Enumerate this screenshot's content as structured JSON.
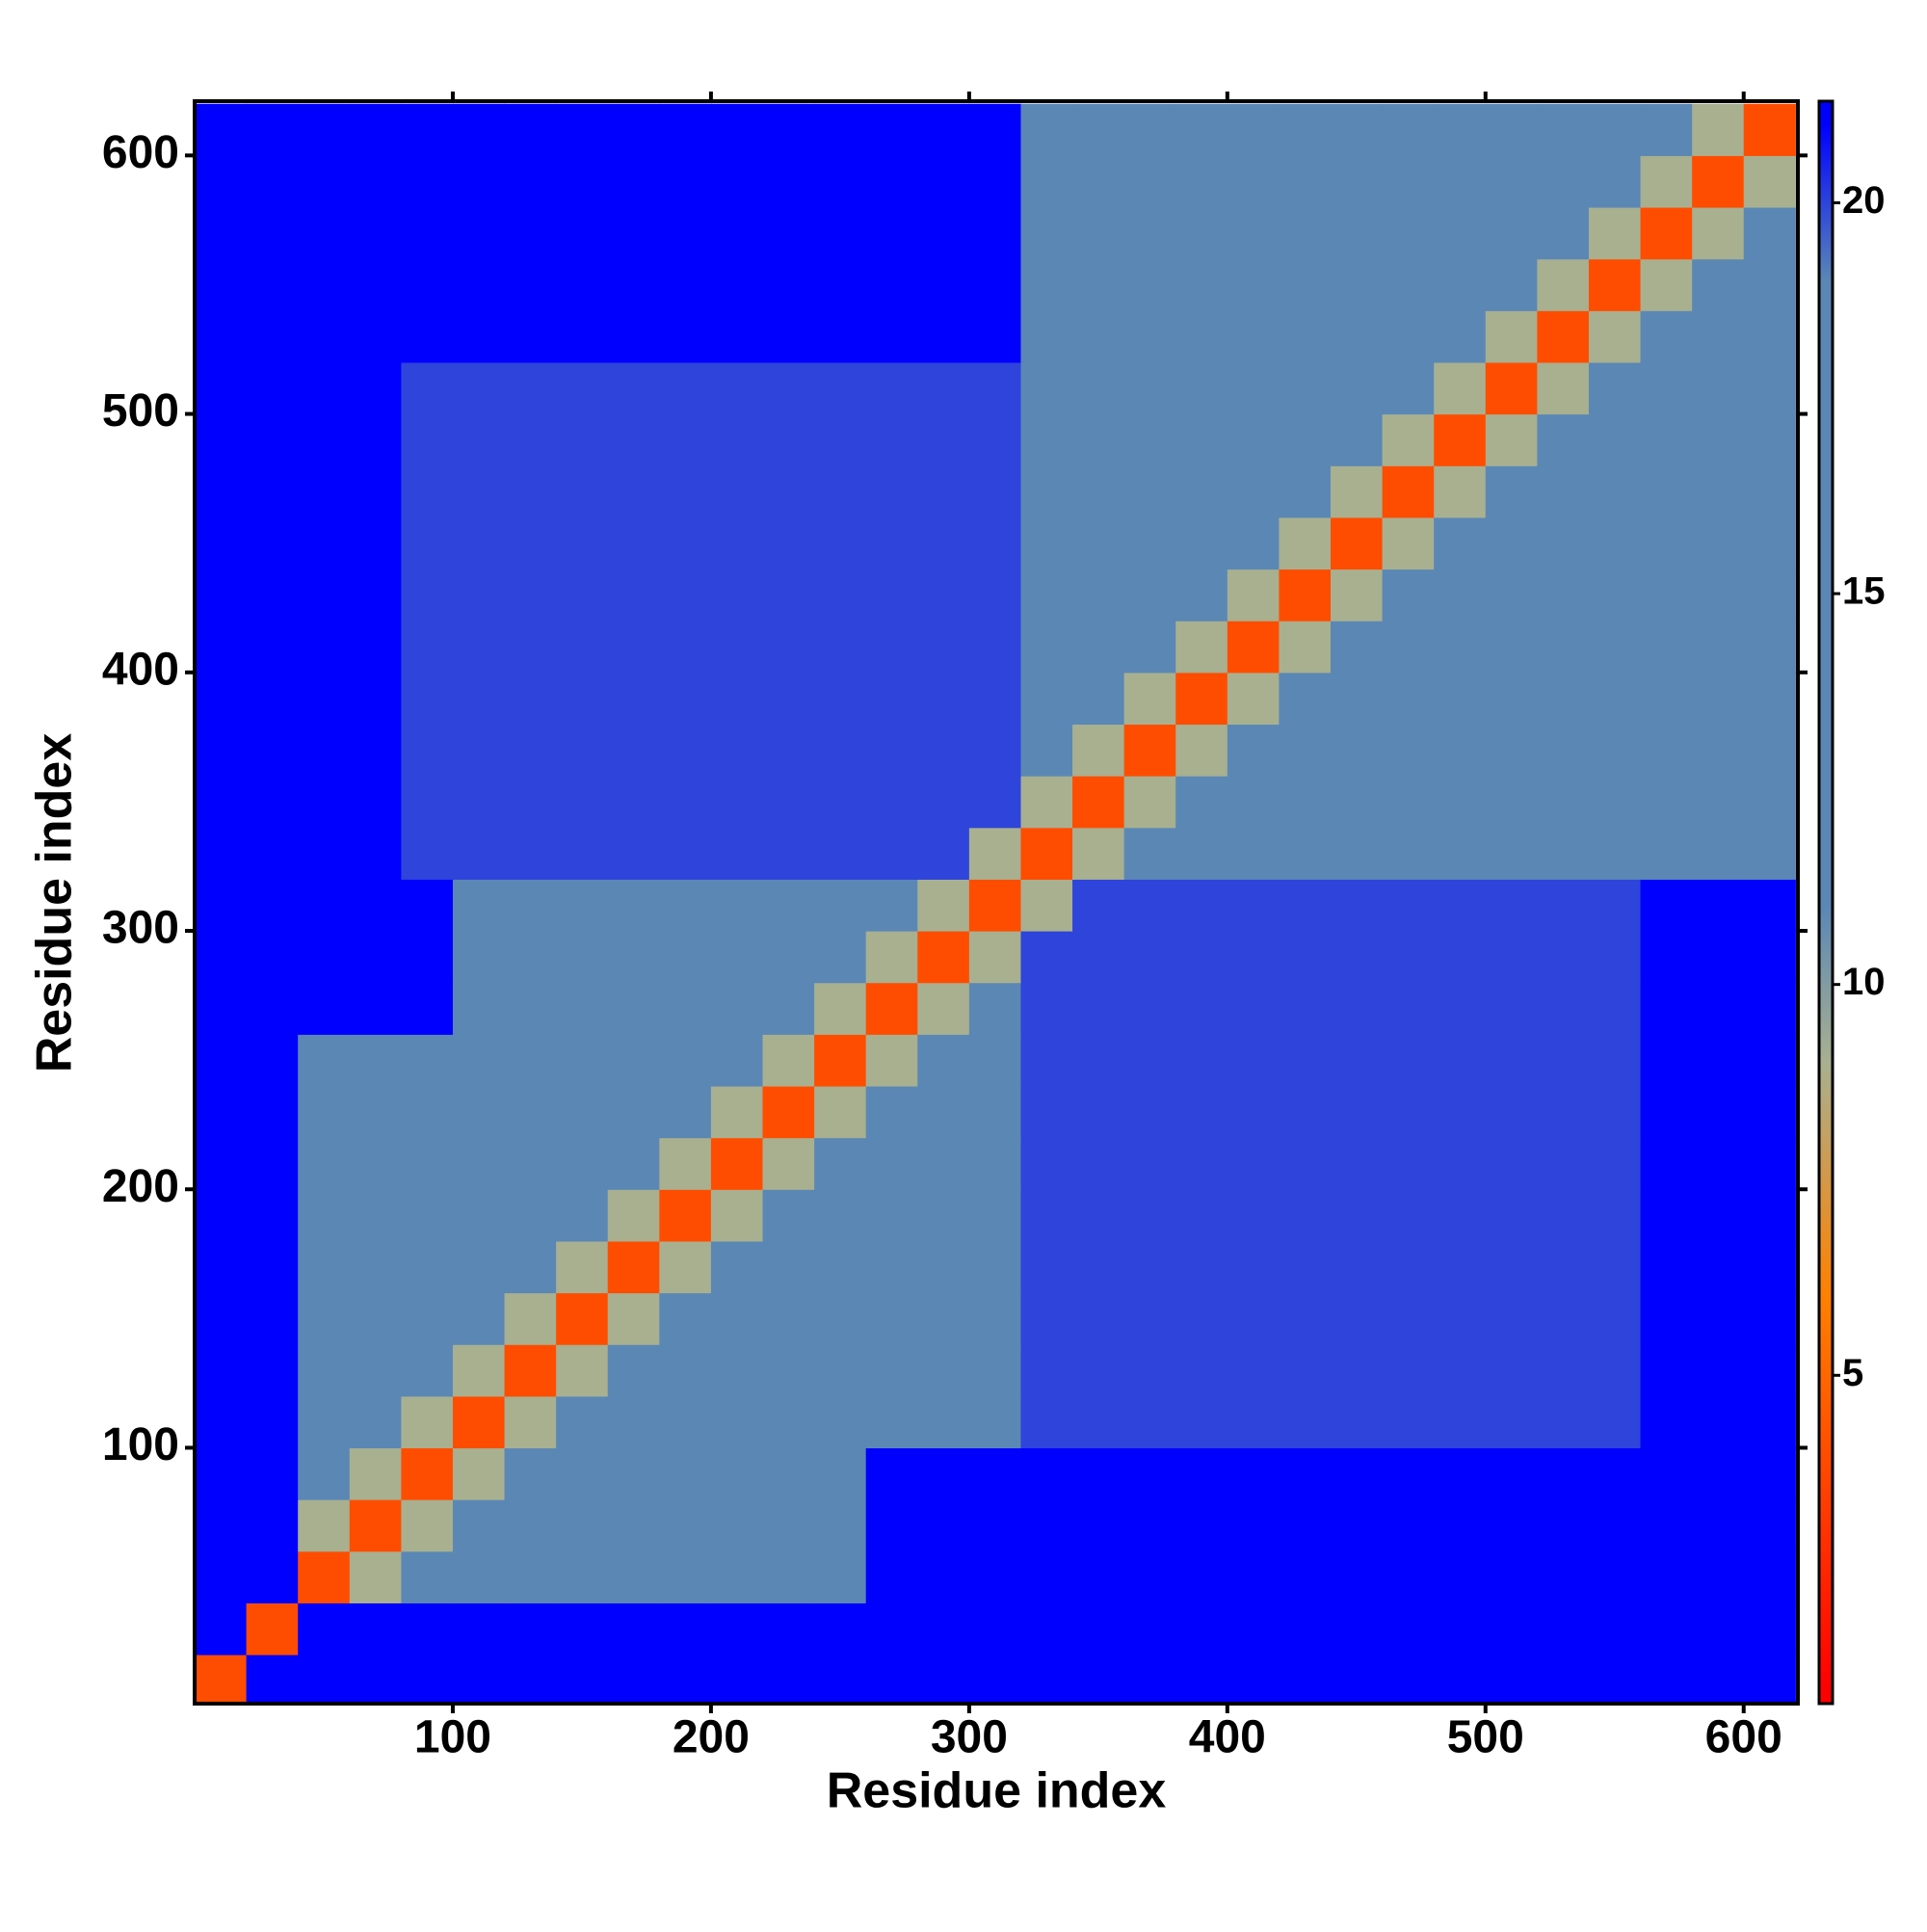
{
  "chart_data": {
    "type": "heatmap",
    "xlabel": "Residue index",
    "ylabel": "Residue index",
    "x": [
      10,
      30,
      50,
      70,
      90,
      110,
      130,
      150,
      170,
      190,
      210,
      230,
      250,
      270,
      290,
      310,
      330,
      350,
      370,
      390,
      410,
      430,
      450,
      470,
      490,
      510,
      530,
      550,
      570,
      590,
      610
    ],
    "y": [
      10,
      30,
      50,
      70,
      90,
      110,
      130,
      150,
      170,
      190,
      210,
      230,
      250,
      270,
      290,
      310,
      330,
      350,
      370,
      390,
      410,
      430,
      450,
      470,
      490,
      510,
      530,
      550,
      570,
      590,
      610
    ],
    "z": [
      [
        4,
        21,
        21,
        21,
        21,
        21,
        21,
        21,
        21,
        21,
        21,
        21,
        21,
        21,
        21,
        21,
        21,
        21,
        21,
        21,
        21,
        21,
        21,
        21,
        21,
        21,
        21,
        21,
        21,
        21,
        21
      ],
      [
        21,
        4,
        21,
        21,
        21,
        21,
        21,
        21,
        21,
        21,
        21,
        21,
        21,
        21,
        21,
        21,
        21,
        21,
        21,
        21,
        21,
        21,
        21,
        21,
        21,
        21,
        21,
        21,
        21,
        21,
        21
      ],
      [
        21,
        21,
        4,
        9,
        17,
        17,
        17,
        17,
        17,
        17,
        17,
        17,
        17,
        21,
        21,
        21,
        21,
        21,
        21,
        21,
        21,
        21,
        21,
        21,
        21,
        21,
        21,
        21,
        21,
        21,
        21
      ],
      [
        21,
        21,
        9,
        4,
        9,
        17,
        17,
        17,
        17,
        17,
        17,
        17,
        17,
        21,
        21,
        21,
        21,
        21,
        21,
        21,
        21,
        21,
        21,
        21,
        21,
        21,
        21,
        21,
        21,
        21,
        21
      ],
      [
        21,
        21,
        17,
        9,
        4,
        9,
        17,
        17,
        17,
        17,
        17,
        17,
        17,
        21,
        21,
        21,
        21,
        21,
        21,
        21,
        21,
        21,
        21,
        21,
        21,
        21,
        21,
        21,
        21,
        21,
        21
      ],
      [
        21,
        21,
        17,
        17,
        9,
        4,
        9,
        17,
        17,
        17,
        17,
        17,
        17,
        17,
        17,
        17,
        20,
        20,
        20,
        20,
        20,
        20,
        20,
        20,
        20,
        20,
        20,
        20,
        21,
        21,
        21
      ],
      [
        21,
        21,
        17,
        17,
        17,
        9,
        4,
        9,
        17,
        17,
        17,
        17,
        17,
        17,
        17,
        17,
        20,
        20,
        20,
        20,
        20,
        20,
        20,
        20,
        20,
        20,
        20,
        20,
        21,
        21,
        21
      ],
      [
        21,
        21,
        17,
        17,
        17,
        17,
        9,
        4,
        9,
        17,
        17,
        17,
        17,
        17,
        17,
        17,
        20,
        20,
        20,
        20,
        20,
        20,
        20,
        20,
        20,
        20,
        20,
        20,
        21,
        21,
        21
      ],
      [
        21,
        21,
        17,
        17,
        17,
        17,
        17,
        9,
        4,
        9,
        17,
        17,
        17,
        17,
        17,
        17,
        20,
        20,
        20,
        20,
        20,
        20,
        20,
        20,
        20,
        20,
        20,
        20,
        21,
        21,
        21
      ],
      [
        21,
        21,
        17,
        17,
        17,
        17,
        17,
        17,
        9,
        4,
        9,
        17,
        17,
        17,
        17,
        17,
        20,
        20,
        20,
        20,
        20,
        20,
        20,
        20,
        20,
        20,
        20,
        20,
        21,
        21,
        21
      ],
      [
        21,
        21,
        17,
        17,
        17,
        17,
        17,
        17,
        17,
        9,
        4,
        9,
        17,
        17,
        17,
        17,
        20,
        20,
        20,
        20,
        20,
        20,
        20,
        20,
        20,
        20,
        20,
        20,
        21,
        21,
        21
      ],
      [
        21,
        21,
        17,
        17,
        17,
        17,
        17,
        17,
        17,
        17,
        9,
        4,
        9,
        17,
        17,
        17,
        20,
        20,
        20,
        20,
        20,
        20,
        20,
        20,
        20,
        20,
        20,
        20,
        21,
        21,
        21
      ],
      [
        21,
        21,
        17,
        17,
        17,
        17,
        17,
        17,
        17,
        17,
        17,
        9,
        4,
        9,
        17,
        17,
        20,
        20,
        20,
        20,
        20,
        20,
        20,
        20,
        20,
        20,
        20,
        20,
        21,
        21,
        21
      ],
      [
        21,
        21,
        21,
        21,
        21,
        17,
        17,
        17,
        17,
        17,
        17,
        17,
        9,
        4,
        9,
        17,
        20,
        20,
        20,
        20,
        20,
        20,
        20,
        20,
        20,
        20,
        20,
        20,
        21,
        21,
        21
      ],
      [
        21,
        21,
        21,
        21,
        21,
        17,
        17,
        17,
        17,
        17,
        17,
        17,
        17,
        9,
        4,
        9,
        20,
        20,
        20,
        20,
        20,
        20,
        20,
        20,
        20,
        20,
        20,
        20,
        21,
        21,
        21
      ],
      [
        21,
        21,
        21,
        21,
        21,
        17,
        17,
        17,
        17,
        17,
        17,
        17,
        17,
        17,
        9,
        4,
        9,
        20,
        20,
        20,
        20,
        20,
        20,
        20,
        20,
        20,
        20,
        20,
        21,
        21,
        21
      ],
      [
        21,
        21,
        21,
        21,
        20,
        20,
        20,
        20,
        20,
        20,
        20,
        20,
        20,
        20,
        20,
        9,
        4,
        9,
        17,
        17,
        17,
        17,
        17,
        17,
        17,
        17,
        17,
        17,
        17,
        17,
        17
      ],
      [
        21,
        21,
        21,
        21,
        20,
        20,
        20,
        20,
        20,
        20,
        20,
        20,
        20,
        20,
        20,
        20,
        9,
        4,
        9,
        17,
        17,
        17,
        17,
        17,
        17,
        17,
        17,
        17,
        17,
        17,
        17
      ],
      [
        21,
        21,
        21,
        21,
        20,
        20,
        20,
        20,
        20,
        20,
        20,
        20,
        20,
        20,
        20,
        20,
        17,
        9,
        4,
        9,
        17,
        17,
        17,
        17,
        17,
        17,
        17,
        17,
        17,
        17,
        17
      ],
      [
        21,
        21,
        21,
        21,
        20,
        20,
        20,
        20,
        20,
        20,
        20,
        20,
        20,
        20,
        20,
        20,
        17,
        17,
        9,
        4,
        9,
        17,
        17,
        17,
        17,
        17,
        17,
        17,
        17,
        17,
        17
      ],
      [
        21,
        21,
        21,
        21,
        20,
        20,
        20,
        20,
        20,
        20,
        20,
        20,
        20,
        20,
        20,
        20,
        17,
        17,
        17,
        9,
        4,
        9,
        17,
        17,
        17,
        17,
        17,
        17,
        17,
        17,
        17
      ],
      [
        21,
        21,
        21,
        21,
        20,
        20,
        20,
        20,
        20,
        20,
        20,
        20,
        20,
        20,
        20,
        20,
        17,
        17,
        17,
        17,
        9,
        4,
        9,
        17,
        17,
        17,
        17,
        17,
        17,
        17,
        17
      ],
      [
        21,
        21,
        21,
        21,
        20,
        20,
        20,
        20,
        20,
        20,
        20,
        20,
        20,
        20,
        20,
        20,
        17,
        17,
        17,
        17,
        17,
        9,
        4,
        9,
        17,
        17,
        17,
        17,
        17,
        17,
        17
      ],
      [
        21,
        21,
        21,
        21,
        20,
        20,
        20,
        20,
        20,
        20,
        20,
        20,
        20,
        20,
        20,
        20,
        17,
        17,
        17,
        17,
        17,
        17,
        9,
        4,
        9,
        17,
        17,
        17,
        17,
        17,
        17
      ],
      [
        21,
        21,
        21,
        21,
        20,
        20,
        20,
        20,
        20,
        20,
        20,
        20,
        20,
        20,
        20,
        20,
        17,
        17,
        17,
        17,
        17,
        17,
        17,
        9,
        4,
        9,
        17,
        17,
        17,
        17,
        17
      ],
      [
        21,
        21,
        21,
        21,
        20,
        20,
        20,
        20,
        20,
        20,
        20,
        20,
        20,
        20,
        20,
        20,
        17,
        17,
        17,
        17,
        17,
        17,
        17,
        17,
        9,
        4,
        9,
        17,
        17,
        17,
        17
      ],
      [
        21,
        21,
        21,
        21,
        21,
        21,
        21,
        21,
        21,
        21,
        21,
        21,
        21,
        21,
        21,
        21,
        17,
        17,
        17,
        17,
        17,
        17,
        17,
        17,
        17,
        9,
        4,
        9,
        17,
        17,
        17
      ],
      [
        21,
        21,
        21,
        21,
        21,
        21,
        21,
        21,
        21,
        21,
        21,
        21,
        21,
        21,
        21,
        21,
        17,
        17,
        17,
        17,
        17,
        17,
        17,
        17,
        17,
        17,
        9,
        4,
        9,
        17,
        17
      ],
      [
        21,
        21,
        21,
        21,
        21,
        21,
        21,
        21,
        21,
        21,
        21,
        21,
        21,
        21,
        21,
        21,
        17,
        17,
        17,
        17,
        17,
        17,
        17,
        17,
        17,
        17,
        17,
        9,
        4,
        9,
        17
      ],
      [
        21,
        21,
        21,
        21,
        21,
        21,
        21,
        21,
        21,
        21,
        21,
        21,
        21,
        21,
        21,
        21,
        17,
        17,
        17,
        17,
        17,
        17,
        17,
        17,
        17,
        17,
        17,
        17,
        9,
        4,
        9
      ],
      [
        21,
        21,
        21,
        21,
        21,
        21,
        21,
        21,
        21,
        21,
        21,
        21,
        21,
        21,
        21,
        21,
        17,
        17,
        17,
        17,
        17,
        17,
        17,
        17,
        17,
        17,
        17,
        17,
        17,
        9,
        4
      ]
    ],
    "xlim": [
      0,
      621
    ],
    "ylim": [
      1,
      621
    ],
    "xticks": [
      100,
      200,
      300,
      400,
      500,
      600
    ],
    "yticks": [
      100,
      200,
      300,
      400,
      500,
      600
    ],
    "zlim": [
      0.8,
      21.3
    ],
    "zticks": [
      5,
      10,
      15,
      20
    ],
    "colorscale": [
      [
        1,
        "#ff0000"
      ],
      [
        6,
        "#ff8000"
      ],
      [
        9,
        "#a8b090"
      ],
      [
        11,
        "#5b87b5"
      ],
      [
        19,
        "#5b87b5"
      ],
      [
        21,
        "#0000ff"
      ]
    ]
  }
}
